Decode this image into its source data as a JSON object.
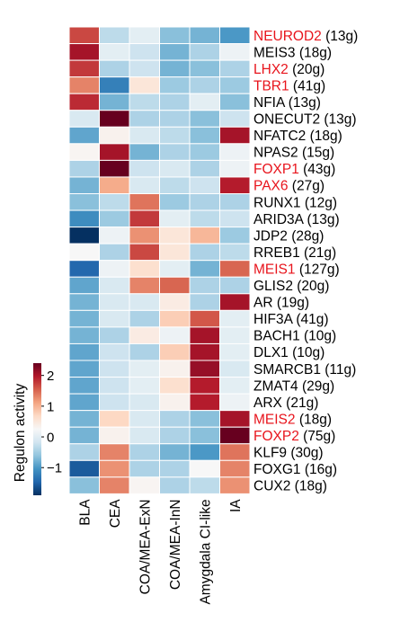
{
  "chart_data": {
    "type": "heatmap",
    "columns": [
      "BLA",
      "CEA",
      "COA/MEA-ExN",
      "COA/MEA-InN",
      "Amygdala CI-like",
      "IA"
    ],
    "rows": [
      {
        "gene": "NEUROD2",
        "count": "(13g)",
        "highlight": true,
        "values": [
          1.6,
          -0.5,
          -0.2,
          -0.8,
          -0.9,
          -1.1
        ]
      },
      {
        "gene": "MEIS3",
        "count": "(18g)",
        "highlight": false,
        "values": [
          2.0,
          -0.2,
          -0.4,
          -0.9,
          -0.6,
          -0.1
        ]
      },
      {
        "gene": "LHX2",
        "count": "(20g)",
        "highlight": true,
        "values": [
          1.7,
          -0.6,
          -0.4,
          -0.9,
          -0.8,
          -0.6
        ]
      },
      {
        "gene": "TBR1",
        "count": "(41g)",
        "highlight": true,
        "values": [
          1.2,
          -1.3,
          0.3,
          -0.7,
          -0.6,
          -0.7
        ]
      },
      {
        "gene": "NFIA",
        "count": "(13g)",
        "highlight": false,
        "values": [
          1.8,
          -0.9,
          -0.5,
          -0.6,
          -0.2,
          -0.8
        ]
      },
      {
        "gene": "ONECUT2",
        "count": "(13g)",
        "highlight": false,
        "values": [
          -0.3,
          2.4,
          -0.6,
          -0.6,
          -0.8,
          -0.4
        ]
      },
      {
        "gene": "NFATC2",
        "count": "(18g)",
        "highlight": false,
        "values": [
          -1.0,
          0.1,
          -0.3,
          -0.5,
          -0.8,
          2.0
        ]
      },
      {
        "gene": "NPAS2",
        "count": "(15g)",
        "highlight": false,
        "values": [
          0.05,
          2.0,
          -0.9,
          -0.6,
          -0.7,
          -0.1
        ]
      },
      {
        "gene": "FOXP1",
        "count": "(43g)",
        "highlight": true,
        "values": [
          -0.6,
          2.4,
          -0.4,
          -0.3,
          -0.6,
          -0.1
        ]
      },
      {
        "gene": "PAX6",
        "count": "(27g)",
        "highlight": true,
        "values": [
          -0.9,
          0.9,
          -0.3,
          -0.5,
          -0.4,
          1.9
        ]
      },
      {
        "gene": "RUNX1",
        "count": "(12g)",
        "highlight": false,
        "values": [
          -0.8,
          -0.5,
          1.3,
          -0.7,
          -0.6,
          -0.6
        ]
      },
      {
        "gene": "ARID3A",
        "count": "(13g)",
        "highlight": false,
        "values": [
          -1.2,
          -0.7,
          1.7,
          -0.2,
          -0.5,
          -0.4
        ]
      },
      {
        "gene": "JDP2",
        "count": "(28g)",
        "highlight": false,
        "values": [
          -2.0,
          -0.1,
          1.1,
          0.3,
          0.8,
          -0.7
        ]
      },
      {
        "gene": "RREB1",
        "count": "(21g)",
        "highlight": false,
        "values": [
          0.0,
          -0.6,
          1.6,
          0.3,
          -0.6,
          -0.5
        ]
      },
      {
        "gene": "MEIS1",
        "count": "(127g)",
        "highlight": true,
        "values": [
          -1.5,
          -0.1,
          0.4,
          -0.2,
          -0.9,
          1.4
        ]
      },
      {
        "gene": "GLIS2",
        "count": "(20g)",
        "highlight": false,
        "values": [
          -1.0,
          -0.3,
          1.2,
          1.4,
          -0.6,
          -0.6
        ]
      },
      {
        "gene": "AR",
        "count": "(19g)",
        "highlight": false,
        "values": [
          -0.9,
          -0.3,
          -0.3,
          0.2,
          -0.6,
          2.0
        ]
      },
      {
        "gene": "HIF3A",
        "count": "(41g)",
        "highlight": false,
        "values": [
          -0.9,
          -0.3,
          -0.6,
          0.6,
          1.5,
          -0.2
        ]
      },
      {
        "gene": "BACH1",
        "count": "(10g)",
        "highlight": false,
        "values": [
          -0.9,
          -0.6,
          0.2,
          -0.1,
          2.0,
          -0.2
        ]
      },
      {
        "gene": "DLX1",
        "count": "(10g)",
        "highlight": false,
        "values": [
          -1.0,
          -0.4,
          -0.6,
          0.6,
          2.0,
          -0.2
        ]
      },
      {
        "gene": "SMARCB1",
        "count": "(11g)",
        "highlight": false,
        "values": [
          -1.0,
          -0.4,
          -0.2,
          0.1,
          2.1,
          -0.3
        ]
      },
      {
        "gene": "ZMAT4",
        "count": "(29g)",
        "highlight": false,
        "values": [
          -1.0,
          -0.4,
          -0.2,
          0.4,
          1.9,
          -0.2
        ]
      },
      {
        "gene": "ARX",
        "count": "(21g)",
        "highlight": false,
        "values": [
          -1.0,
          -0.4,
          -0.3,
          0.1,
          1.9,
          -0.1
        ]
      },
      {
        "gene": "MEIS2",
        "count": "(18g)",
        "highlight": true,
        "values": [
          -0.9,
          0.5,
          -0.3,
          -0.6,
          -0.8,
          2.0
        ]
      },
      {
        "gene": "FOXP2",
        "count": "(75g)",
        "highlight": true,
        "values": [
          -0.9,
          0.1,
          -0.3,
          -0.6,
          -0.8,
          2.4
        ]
      },
      {
        "gene": "KLF9",
        "count": "(30g)",
        "highlight": false,
        "values": [
          -0.6,
          1.2,
          -0.6,
          -0.9,
          -1.1,
          1.3
        ]
      },
      {
        "gene": "FOXG1",
        "count": "(16g)",
        "highlight": false,
        "values": [
          -1.6,
          1.1,
          -0.6,
          -0.6,
          0.0,
          1.2
        ]
      },
      {
        "gene": "CUX2",
        "count": "(18g)",
        "highlight": false,
        "values": [
          -0.8,
          1.2,
          0.05,
          -0.6,
          -0.5,
          1.1
        ]
      }
    ],
    "colorbar": {
      "label": "Regulon activity",
      "ticks": [
        "2",
        "1",
        "0",
        "−1"
      ],
      "tick_values": [
        2,
        1,
        0,
        -1
      ],
      "range": [
        -1.9,
        2.4
      ]
    },
    "highlight_color": "#e8141c",
    "colorscale": [
      "#053061",
      "#2166ac",
      "#4393c3",
      "#92c5de",
      "#d1e5f0",
      "#f7f7f7",
      "#fddbc7",
      "#f4a582",
      "#d6604d",
      "#b2182b",
      "#67001f"
    ]
  }
}
